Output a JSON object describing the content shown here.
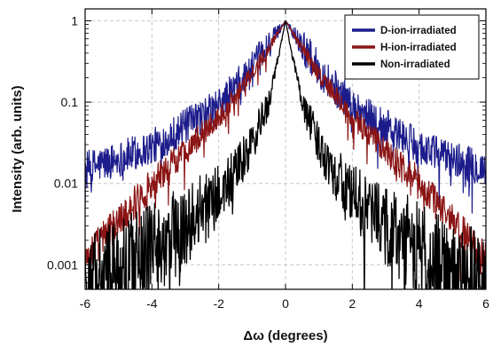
{
  "chart_data": {
    "type": "line",
    "title": "",
    "xlabel": "Δω (degrees)",
    "ylabel": "Intensity (arb. units)",
    "xlim": [
      -6,
      6
    ],
    "ylim": [
      0.0005,
      1.4
    ],
    "yscale": "log",
    "grid": true,
    "legend_position": "top-right",
    "x_ticks": [
      "-6",
      "-4",
      "-2",
      "0",
      "2",
      "4",
      "6"
    ],
    "y_ticks": [
      "1",
      "0.1",
      "0.01",
      "0.001"
    ],
    "series": [
      {
        "name": "D-ion-irradiated",
        "color": "#1c1c8c",
        "x": [
          -6,
          -5,
          -4,
          -3,
          -2,
          -1.5,
          -1,
          -0.5,
          0,
          0.5,
          1,
          1.5,
          2,
          3,
          4,
          5,
          6
        ],
        "y": [
          0.015,
          0.02,
          0.028,
          0.05,
          0.09,
          0.15,
          0.25,
          0.5,
          1.0,
          0.5,
          0.25,
          0.15,
          0.09,
          0.05,
          0.028,
          0.02,
          0.015
        ]
      },
      {
        "name": "H-ion-irradiated",
        "color": "#8b1414",
        "x": [
          -6,
          -5,
          -4,
          -3,
          -2,
          -1.5,
          -1,
          -0.5,
          0,
          0.5,
          1,
          1.5,
          2,
          3,
          4,
          5,
          6
        ],
        "y": [
          0.0012,
          0.0035,
          0.01,
          0.025,
          0.065,
          0.12,
          0.22,
          0.47,
          1.0,
          0.47,
          0.22,
          0.12,
          0.065,
          0.025,
          0.01,
          0.0035,
          0.0012
        ]
      },
      {
        "name": "Non-irradiated",
        "color": "#000000",
        "x": [
          -6,
          -5,
          -4,
          -3,
          -2,
          -1.5,
          -1,
          -0.5,
          -0.25,
          0,
          0.25,
          0.5,
          1,
          1.5,
          2,
          3,
          4,
          5,
          6
        ],
        "y": [
          0.0006,
          0.0008,
          0.0015,
          0.003,
          0.007,
          0.013,
          0.03,
          0.1,
          0.3,
          1.0,
          0.3,
          0.1,
          0.03,
          0.013,
          0.007,
          0.003,
          0.0015,
          0.0008,
          0.0006
        ]
      }
    ]
  }
}
